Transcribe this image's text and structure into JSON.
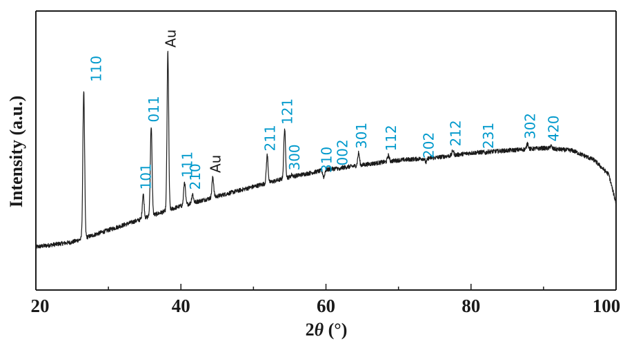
{
  "chart_data": {
    "type": "line",
    "xlabel_prefix": "2",
    "xlabel_theta": "θ",
    "xlabel_suffix": " (°)",
    "ylabel": "Intensity (a.u.)",
    "xlim": [
      20,
      100
    ],
    "ylim": [
      0,
      1
    ],
    "x_ticks": [
      20,
      40,
      60,
      80,
      100
    ],
    "x_minor_ticks": [
      30,
      50,
      70,
      90
    ],
    "show_y_ticks": false,
    "grid": false,
    "line_color": "#1a1a1a",
    "peak_label_colors": {
      "hkl": "#0099cc",
      "Au": "#1a1a1a"
    },
    "baseline": [
      [
        20,
        0.09
      ],
      [
        25,
        0.11
      ],
      [
        30,
        0.16
      ],
      [
        35,
        0.21
      ],
      [
        40,
        0.26
      ],
      [
        45,
        0.3
      ],
      [
        50,
        0.34
      ],
      [
        55,
        0.38
      ],
      [
        60,
        0.41
      ],
      [
        65,
        0.43
      ],
      [
        70,
        0.45
      ],
      [
        75,
        0.46
      ],
      [
        80,
        0.48
      ],
      [
        85,
        0.49
      ],
      [
        90,
        0.5
      ],
      [
        94,
        0.49
      ],
      [
        97,
        0.45
      ],
      [
        99,
        0.39
      ],
      [
        100,
        0.27
      ]
    ],
    "peaks": [
      {
        "x": 26.6,
        "y": 0.74,
        "label": "110",
        "kind": "hkl"
      },
      {
        "x": 34.8,
        "y": 0.31,
        "label": "101",
        "kind": "hkl"
      },
      {
        "x": 35.9,
        "y": 0.59,
        "label": "011",
        "kind": "hkl"
      },
      {
        "x": 38.2,
        "y": 0.9,
        "label": "Au",
        "kind": "Au"
      },
      {
        "x": 40.5,
        "y": 0.36,
        "label": "111",
        "kind": "hkl"
      },
      {
        "x": 41.6,
        "y": 0.31,
        "label": "210",
        "kind": "hkl"
      },
      {
        "x": 44.4,
        "y": 0.38,
        "label": "Au",
        "kind": "Au"
      },
      {
        "x": 51.9,
        "y": 0.47,
        "label": "211",
        "kind": "hkl"
      },
      {
        "x": 54.3,
        "y": 0.58,
        "label": "121",
        "kind": "hkl"
      },
      {
        "x": 55.3,
        "y": 0.39,
        "label": "300",
        "kind": "hkl"
      },
      {
        "x": 59.7,
        "y": 0.38,
        "label": "310",
        "kind": "hkl"
      },
      {
        "x": 61.9,
        "y": 0.41,
        "label": "002",
        "kind": "hkl"
      },
      {
        "x": 64.5,
        "y": 0.48,
        "label": "301",
        "kind": "hkl"
      },
      {
        "x": 68.6,
        "y": 0.47,
        "label": "112",
        "kind": "hkl"
      },
      {
        "x": 73.8,
        "y": 0.44,
        "label": "202",
        "kind": "hkl"
      },
      {
        "x": 77.5,
        "y": 0.49,
        "label": "212",
        "kind": "hkl"
      },
      {
        "x": 82.0,
        "y": 0.48,
        "label": "231",
        "kind": "hkl"
      },
      {
        "x": 87.8,
        "y": 0.52,
        "label": "302",
        "kind": "hkl"
      },
      {
        "x": 91.0,
        "y": 0.51,
        "label": "420",
        "kind": "hkl"
      }
    ]
  }
}
